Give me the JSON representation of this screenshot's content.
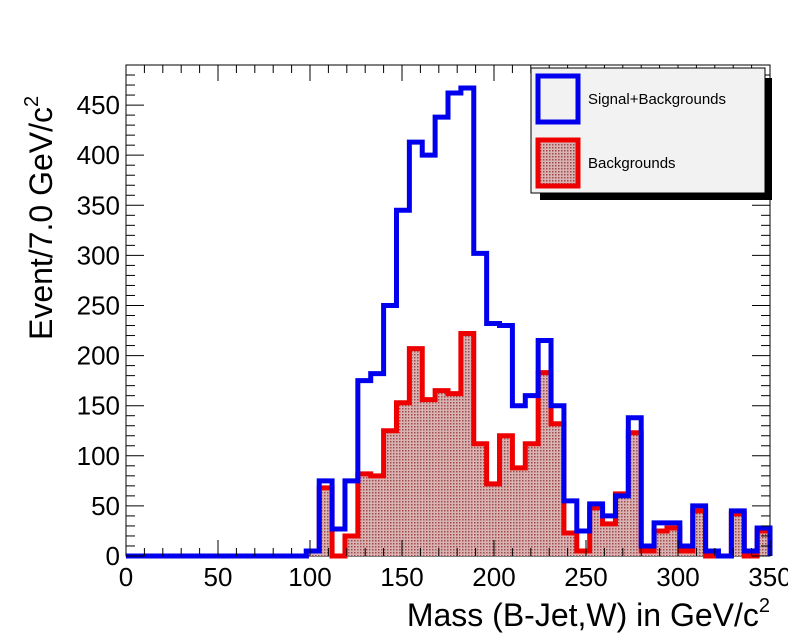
{
  "chart_data": {
    "type": "histogram",
    "bin_width": 7.0,
    "xlim": [
      0,
      350
    ],
    "ylim": [
      0,
      490
    ],
    "xlabel": "Mass (B-Jet,W) in GeV/c",
    "xlabel_sup": "2",
    "ylabel": "Event/7.0 GeV/c",
    "ylabel_sup": "2",
    "x_ticks": [
      0,
      50,
      100,
      150,
      200,
      250,
      300,
      350
    ],
    "x_tick_labels": [
      "0",
      "50",
      "100",
      "150",
      "200",
      "250",
      "300",
      "350"
    ],
    "y_ticks": [
      0,
      50,
      100,
      150,
      200,
      250,
      300,
      350,
      400,
      450
    ],
    "y_tick_labels": [
      "0",
      "50",
      "100",
      "150",
      "200",
      "250",
      "300",
      "350",
      "400",
      "450"
    ],
    "legend_position": "top-right",
    "colors": {
      "signal": "#0000ee",
      "background": "#ee0000",
      "fill": "#b07070"
    },
    "series": [
      {
        "name": "Signal+Backgrounds",
        "style": "outline",
        "values": [
          0,
          0,
          0,
          0,
          0,
          0,
          0,
          0,
          0,
          0,
          0,
          0,
          0,
          0,
          5,
          75,
          27,
          75,
          175,
          182,
          250,
          345,
          413,
          400,
          438,
          462,
          467,
          302,
          232,
          230,
          150,
          160,
          215,
          150,
          55,
          25,
          52,
          40,
          60,
          138,
          10,
          33,
          33,
          10,
          50,
          5,
          0,
          45,
          5,
          28
        ]
      },
      {
        "name": "Backgrounds",
        "style": "filled",
        "values": [
          0,
          0,
          0,
          0,
          0,
          0,
          0,
          0,
          0,
          0,
          0,
          0,
          0,
          0,
          5,
          68,
          0,
          20,
          82,
          80,
          125,
          153,
          207,
          156,
          165,
          162,
          222,
          112,
          72,
          120,
          88,
          112,
          183,
          132,
          23,
          5,
          48,
          32,
          62,
          123,
          5,
          25,
          28,
          5,
          45,
          0,
          0,
          42,
          0,
          25
        ]
      }
    ]
  }
}
